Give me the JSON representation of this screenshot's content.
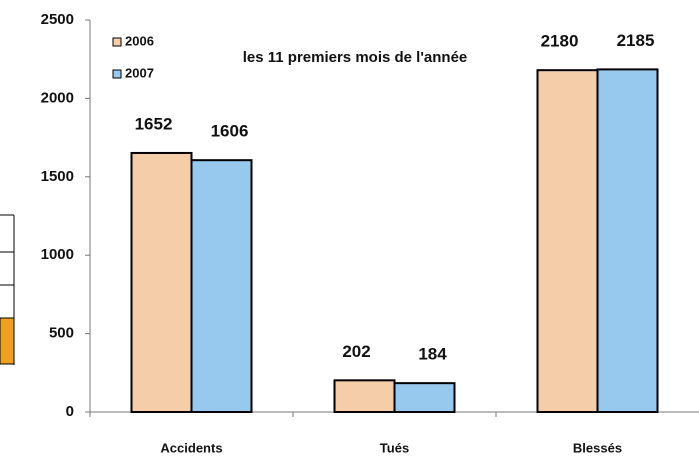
{
  "chart_data": {
    "type": "bar",
    "subtitle": "les 11 premiers mois de l'année",
    "categories": [
      "Accidents",
      "Tués",
      "Blessés"
    ],
    "series": [
      {
        "name": "2006",
        "color": "#f6cda9",
        "values": [
          1652,
          202,
          2180
        ]
      },
      {
        "name": "2007",
        "color": "#97c9ef",
        "values": [
          1606,
          184,
          2185
        ]
      }
    ],
    "ylim": [
      0,
      2500
    ],
    "yticks": [
      0,
      500,
      1000,
      1500,
      2000,
      2500
    ]
  }
}
